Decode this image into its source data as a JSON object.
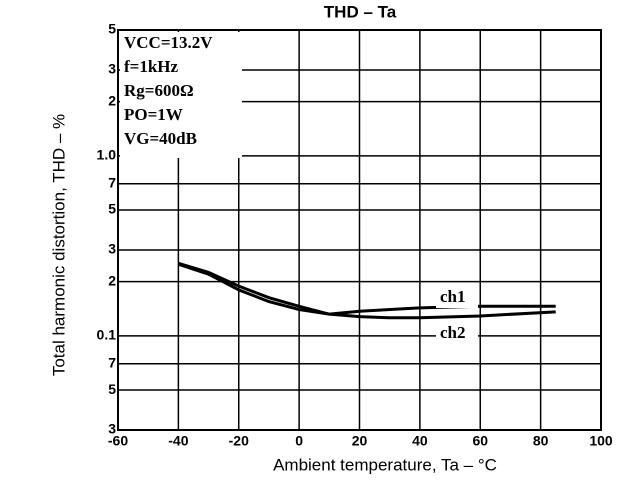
{
  "chart_data": {
    "type": "line",
    "title": "THD – Ta",
    "xlabel": "Ambient temperature, Ta – °C",
    "ylabel": "Total harmonic distortion, THD – %",
    "annotations": [
      "VCC=13.2V",
      "f=1kHz",
      "Rg=600Ω",
      "PO=1W",
      "VG=40dB"
    ],
    "xlim": [
      -60,
      100
    ],
    "xticks": [
      -60,
      -40,
      -20,
      0,
      20,
      40,
      60,
      80,
      100
    ],
    "ylim": [
      0.03,
      5
    ],
    "ylog": true,
    "yticks": [
      5,
      3,
      2,
      {
        "value": 1,
        "label": "1.0"
      },
      {
        "value": 0.7,
        "label": "7"
      },
      {
        "value": 0.5,
        "label": "5"
      },
      {
        "value": 0.3,
        "label": "3"
      },
      {
        "value": 0.2,
        "label": "2"
      },
      0.1,
      {
        "value": 0.07,
        "label": "7"
      },
      {
        "value": 0.05,
        "label": "5"
      },
      {
        "value": 0.03,
        "label": "3"
      }
    ],
    "grid": true,
    "series": [
      {
        "name": "ch1",
        "color": "#000000",
        "x": [
          -40,
          -30,
          -20,
          -10,
          0,
          10,
          20,
          40,
          60,
          85
        ],
        "values": [
          0.253,
          0.225,
          0.189,
          0.163,
          0.146,
          0.132,
          0.137,
          0.143,
          0.146,
          0.146
        ]
      },
      {
        "name": "ch2",
        "color": "#000000",
        "x": [
          -40,
          -30,
          -20,
          -10,
          0,
          10,
          20,
          30,
          40,
          60,
          85
        ],
        "values": [
          0.25,
          0.22,
          0.18,
          0.155,
          0.14,
          0.132,
          0.128,
          0.126,
          0.126,
          0.129,
          0.136
        ]
      }
    ]
  }
}
